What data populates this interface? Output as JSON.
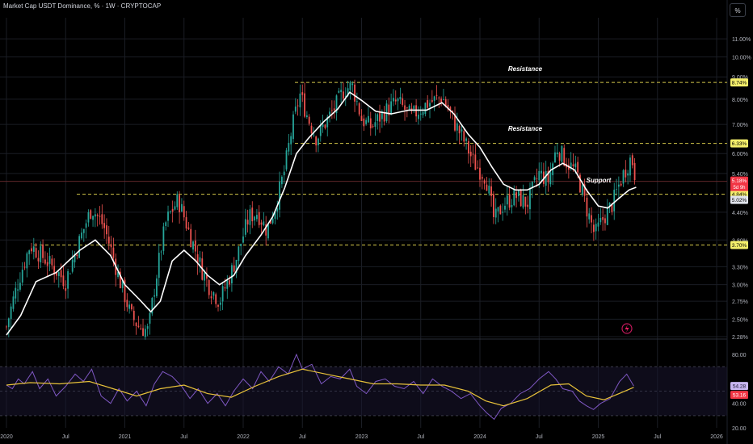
{
  "header": {
    "title": "Market Cap USDT Dominance, % · 1W · CRYPTOCAP"
  },
  "toolbar": {
    "percent_label": "%"
  },
  "colors": {
    "background": "#000000",
    "candle_up": "#26a69a",
    "candle_down": "#ef5350",
    "ma_line": "#ffffff",
    "level_line": "#d4c84a",
    "level_badge": "#f5ef6b",
    "current_badge": "#f23645",
    "rsi_line": "#7e57c2",
    "rsi_ma": "#e8c23a",
    "grid": "#1a1d24",
    "axis_text": "#b2b5be"
  },
  "chart_data": [
    {
      "type": "candlestick",
      "title": "Market Cap USDT Dominance, %",
      "scale": "log",
      "ylim": [
        2.28,
        12.3
      ],
      "y_ticks": [
        "11.00%",
        "10.00%",
        "9.00%",
        "8.00%",
        "7.00%",
        "6.00%",
        "5.40%",
        "4.40%",
        "3.80%",
        "3.30%",
        "3.00%",
        "2.75%",
        "2.50%",
        "2.28%"
      ],
      "x_ticks": [
        "2020",
        "Jul",
        "2021",
        "Jul",
        "2022",
        "Jul",
        "2023",
        "Jul",
        "2024",
        "Jul",
        "2025",
        "Jul",
        "2026"
      ],
      "levels": [
        {
          "value": 8.74,
          "label": "8.74%",
          "annotation": "Resistance"
        },
        {
          "value": 6.33,
          "label": "6.33%",
          "annotation": "Resistance"
        },
        {
          "value": 4.84,
          "label": "4.84%",
          "annotation": "Support"
        },
        {
          "value": 3.7,
          "label": "3.70%",
          "annotation": ""
        }
      ],
      "current": {
        "value": 5.18,
        "label": "5.18%",
        "countdown": "5d 9h"
      },
      "ma_last": {
        "value": 5.02,
        "label": "5.02%"
      },
      "price_path": [
        [
          2020.0,
          2.4
        ],
        [
          2020.2,
          3.7
        ],
        [
          2020.32,
          3.45
        ],
        [
          2020.5,
          3.05
        ],
        [
          2020.62,
          3.8
        ],
        [
          2020.72,
          4.5
        ],
        [
          2020.82,
          4.1
        ],
        [
          2020.95,
          3.1
        ],
        [
          2021.05,
          2.55
        ],
        [
          2021.12,
          2.4
        ],
        [
          2021.2,
          2.35
        ],
        [
          2021.28,
          3.3
        ],
        [
          2021.35,
          4.2
        ],
        [
          2021.45,
          4.7
        ],
        [
          2021.55,
          3.9
        ],
        [
          2021.65,
          3.25
        ],
        [
          2021.72,
          2.95
        ],
        [
          2021.8,
          2.75
        ],
        [
          2021.88,
          3.1
        ],
        [
          2021.95,
          3.5
        ],
        [
          2022.05,
          4.3
        ],
        [
          2022.12,
          4.4
        ],
        [
          2022.2,
          4.0
        ],
        [
          2022.28,
          4.6
        ],
        [
          2022.35,
          5.5
        ],
        [
          2022.42,
          7.0
        ],
        [
          2022.48,
          8.2
        ],
        [
          2022.55,
          7.2
        ],
        [
          2022.62,
          6.5
        ],
        [
          2022.7,
          7.1
        ],
        [
          2022.78,
          7.7
        ],
        [
          2022.85,
          8.4
        ],
        [
          2022.92,
          8.6
        ],
        [
          2023.0,
          7.2
        ],
        [
          2023.08,
          6.9
        ],
        [
          2023.2,
          7.5
        ],
        [
          2023.3,
          7.9
        ],
        [
          2023.42,
          7.3
        ],
        [
          2023.55,
          7.8
        ],
        [
          2023.68,
          8.1
        ],
        [
          2023.78,
          7.1
        ],
        [
          2023.88,
          6.3
        ],
        [
          2023.95,
          5.7
        ],
        [
          2024.05,
          5.3
        ],
        [
          2024.12,
          4.2
        ],
        [
          2024.2,
          4.6
        ],
        [
          2024.3,
          4.8
        ],
        [
          2024.4,
          4.6
        ],
        [
          2024.5,
          5.4
        ],
        [
          2024.58,
          5.2
        ],
        [
          2024.65,
          6.2
        ],
        [
          2024.72,
          5.8
        ],
        [
          2024.82,
          5.4
        ],
        [
          2024.9,
          4.5
        ],
        [
          2024.97,
          3.9
        ],
        [
          2025.05,
          4.3
        ],
        [
          2025.12,
          4.6
        ],
        [
          2025.2,
          5.3
        ],
        [
          2025.28,
          5.9
        ],
        [
          2025.32,
          5.18
        ]
      ],
      "ma_path": [
        [
          2020.0,
          2.3
        ],
        [
          2020.12,
          2.55
        ],
        [
          2020.25,
          3.05
        ],
        [
          2020.42,
          3.2
        ],
        [
          2020.62,
          3.6
        ],
        [
          2020.75,
          3.8
        ],
        [
          2020.88,
          3.5
        ],
        [
          2021.0,
          3.0
        ],
        [
          2021.12,
          2.78
        ],
        [
          2021.22,
          2.6
        ],
        [
          2021.3,
          2.75
        ],
        [
          2021.4,
          3.4
        ],
        [
          2021.5,
          3.6
        ],
        [
          2021.6,
          3.4
        ],
        [
          2021.7,
          3.15
        ],
        [
          2021.8,
          3.0
        ],
        [
          2021.92,
          3.15
        ],
        [
          2022.02,
          3.5
        ],
        [
          2022.15,
          3.9
        ],
        [
          2022.25,
          4.3
        ],
        [
          2022.35,
          5.0
        ],
        [
          2022.45,
          6.0
        ],
        [
          2022.55,
          6.5
        ],
        [
          2022.68,
          7.1
        ],
        [
          2022.8,
          7.6
        ],
        [
          2022.9,
          8.3
        ],
        [
          2023.0,
          7.95
        ],
        [
          2023.12,
          7.5
        ],
        [
          2023.25,
          7.4
        ],
        [
          2023.4,
          7.55
        ],
        [
          2023.55,
          7.55
        ],
        [
          2023.68,
          7.85
        ],
        [
          2023.78,
          7.4
        ],
        [
          2023.9,
          6.65
        ],
        [
          2024.0,
          6.2
        ],
        [
          2024.1,
          5.6
        ],
        [
          2024.2,
          5.1
        ],
        [
          2024.3,
          4.95
        ],
        [
          2024.4,
          4.95
        ],
        [
          2024.5,
          5.1
        ],
        [
          2024.6,
          5.5
        ],
        [
          2024.7,
          5.7
        ],
        [
          2024.8,
          5.5
        ],
        [
          2024.9,
          4.95
        ],
        [
          2025.0,
          4.55
        ],
        [
          2025.08,
          4.5
        ],
        [
          2025.18,
          4.75
        ],
        [
          2025.26,
          4.95
        ],
        [
          2025.32,
          5.02
        ]
      ]
    },
    {
      "type": "line",
      "title": "RSI",
      "ylim": [
        20,
        90
      ],
      "y_ticks": [
        "80.00",
        "40.00",
        "20.00"
      ],
      "reference_lines": [
        70,
        50,
        30
      ],
      "rsi": {
        "value": 54.28,
        "label": "54.28"
      },
      "rsi_ma": {
        "value": 53.16,
        "label": "53.16"
      },
      "rsi_path": [
        [
          2020.0,
          55
        ],
        [
          2020.05,
          52
        ],
        [
          2020.1,
          60
        ],
        [
          2020.15,
          56
        ],
        [
          2020.22,
          66
        ],
        [
          2020.28,
          52
        ],
        [
          2020.35,
          60
        ],
        [
          2020.42,
          46
        ],
        [
          2020.5,
          54
        ],
        [
          2020.58,
          64
        ],
        [
          2020.65,
          58
        ],
        [
          2020.72,
          68
        ],
        [
          2020.8,
          46
        ],
        [
          2020.88,
          40
        ],
        [
          2020.95,
          52
        ],
        [
          2021.02,
          42
        ],
        [
          2021.1,
          50
        ],
        [
          2021.18,
          38
        ],
        [
          2021.25,
          56
        ],
        [
          2021.32,
          66
        ],
        [
          2021.4,
          62
        ],
        [
          2021.48,
          54
        ],
        [
          2021.55,
          44
        ],
        [
          2021.62,
          52
        ],
        [
          2021.7,
          40
        ],
        [
          2021.78,
          48
        ],
        [
          2021.85,
          38
        ],
        [
          2021.92,
          50
        ],
        [
          2022.0,
          60
        ],
        [
          2022.08,
          52
        ],
        [
          2022.15,
          66
        ],
        [
          2022.22,
          58
        ],
        [
          2022.3,
          70
        ],
        [
          2022.38,
          64
        ],
        [
          2022.45,
          80
        ],
        [
          2022.5,
          68
        ],
        [
          2022.58,
          72
        ],
        [
          2022.66,
          56
        ],
        [
          2022.74,
          62
        ],
        [
          2022.82,
          60
        ],
        [
          2022.9,
          68
        ],
        [
          2022.96,
          54
        ],
        [
          2023.04,
          48
        ],
        [
          2023.12,
          58
        ],
        [
          2023.2,
          60
        ],
        [
          2023.28,
          54
        ],
        [
          2023.36,
          52
        ],
        [
          2023.44,
          58
        ],
        [
          2023.52,
          48
        ],
        [
          2023.6,
          60
        ],
        [
          2023.68,
          54
        ],
        [
          2023.76,
          50
        ],
        [
          2023.84,
          44
        ],
        [
          2023.92,
          48
        ],
        [
          2024.0,
          38
        ],
        [
          2024.06,
          32
        ],
        [
          2024.12,
          27
        ],
        [
          2024.18,
          36
        ],
        [
          2024.26,
          40
        ],
        [
          2024.34,
          48
        ],
        [
          2024.42,
          52
        ],
        [
          2024.5,
          60
        ],
        [
          2024.58,
          66
        ],
        [
          2024.64,
          60
        ],
        [
          2024.7,
          52
        ],
        [
          2024.78,
          50
        ],
        [
          2024.84,
          42
        ],
        [
          2024.9,
          38
        ],
        [
          2024.96,
          35
        ],
        [
          2025.02,
          40
        ],
        [
          2025.1,
          44
        ],
        [
          2025.18,
          58
        ],
        [
          2025.24,
          64
        ],
        [
          2025.3,
          54.28
        ]
      ],
      "rsi_ma_path": [
        [
          2020.0,
          55
        ],
        [
          2020.2,
          57
        ],
        [
          2020.45,
          56
        ],
        [
          2020.7,
          58
        ],
        [
          2020.9,
          52
        ],
        [
          2021.1,
          46
        ],
        [
          2021.3,
          52
        ],
        [
          2021.5,
          55
        ],
        [
          2021.7,
          48
        ],
        [
          2021.9,
          45
        ],
        [
          2022.1,
          54
        ],
        [
          2022.3,
          62
        ],
        [
          2022.5,
          68
        ],
        [
          2022.7,
          64
        ],
        [
          2022.9,
          60
        ],
        [
          2023.1,
          56
        ],
        [
          2023.3,
          56
        ],
        [
          2023.5,
          55
        ],
        [
          2023.7,
          55
        ],
        [
          2023.9,
          50
        ],
        [
          2024.05,
          42
        ],
        [
          2024.2,
          38
        ],
        [
          2024.4,
          44
        ],
        [
          2024.6,
          55
        ],
        [
          2024.75,
          56
        ],
        [
          2024.9,
          46
        ],
        [
          2025.05,
          43
        ],
        [
          2025.2,
          49
        ],
        [
          2025.3,
          53.16
        ]
      ]
    }
  ]
}
